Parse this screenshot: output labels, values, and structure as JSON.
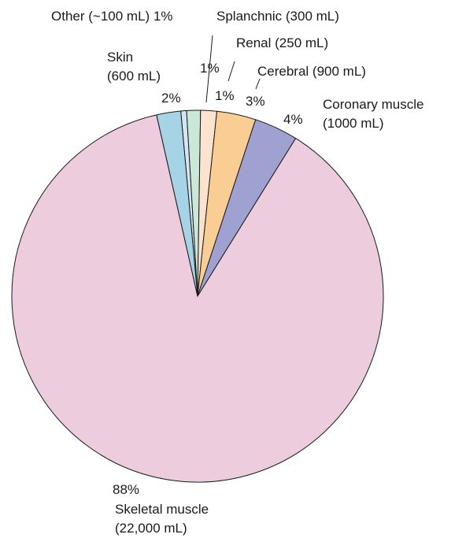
{
  "chart_data": {
    "type": "pie",
    "title": "",
    "start_angle_deg": -5.2,
    "direction": "clockwise",
    "slices": [
      {
        "name": "Other",
        "volume": "(~100 mL)",
        "percent": 0.5,
        "percent_label": "1%",
        "color": "#d4e6f4"
      },
      {
        "name": "Splanchnic",
        "volume": "(300 mL)",
        "percent": 1.2,
        "percent_label": "1%",
        "color": "#c9e8d8"
      },
      {
        "name": "Renal",
        "volume": "(250 mL)",
        "percent": 1.4,
        "percent_label": "1%",
        "color": "#fbe3cf"
      },
      {
        "name": "Cerebral",
        "volume": "(900 mL)",
        "percent": 3.4,
        "percent_label": "3%",
        "color": "#f9cd94"
      },
      {
        "name": "Coronary muscle",
        "volume": "(1000 mL)",
        "percent": 3.8,
        "percent_label": "4%",
        "color": "#9fa1d1"
      },
      {
        "name": "Skeletal muscle",
        "volume": "(22,000 mL)",
        "percent": 87.6,
        "percent_label": "88%",
        "color": "#ecccdd"
      },
      {
        "name": "Skin",
        "volume": "(600 mL)",
        "percent": 2.1,
        "percent_label": "2%",
        "color": "#a7d3e6"
      }
    ],
    "labels": {
      "other": "Other (~100 mL) 1%",
      "splanchnic": "Splanchnic (300 mL)",
      "renal_pct": "1%",
      "renal_name": "Renal (250 mL)",
      "splanchnic_pct": "1%",
      "cerebral_name": "Cerebral (900 mL)",
      "cerebral_pct": "3%",
      "skin_name": "Skin",
      "skin_volume": "(600 mL)",
      "skin_pct": "2%",
      "coronary_name": "Coronary muscle",
      "coronary_volume": "(1000 mL)",
      "coronary_pct": "4%",
      "skeletal_pct": "88%",
      "skeletal_name": "Skeletal muscle",
      "skeletal_volume": "(22,000 mL)"
    }
  }
}
